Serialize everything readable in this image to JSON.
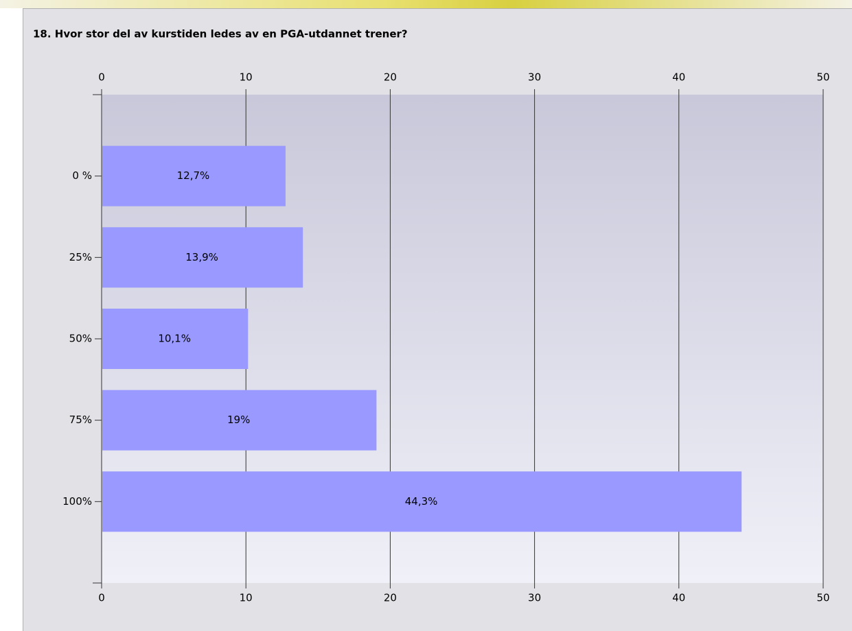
{
  "chart_data": {
    "type": "bar",
    "orientation": "horizontal",
    "title": "18. Hvor stor del av kurstiden ledes av en PGA-utdannet trener?",
    "categories": [
      "0 %",
      "25%",
      "50%",
      "75%",
      "100%"
    ],
    "values": [
      12.7,
      13.9,
      10.1,
      19,
      44.3
    ],
    "value_labels": [
      "12,7%",
      "13,9%",
      "10,1%",
      "19%",
      "44,3%"
    ],
    "color": "#9999ff",
    "xlim": [
      0,
      50
    ],
    "xticks": [
      0,
      10,
      20,
      30,
      40,
      50
    ],
    "grid": true
  }
}
